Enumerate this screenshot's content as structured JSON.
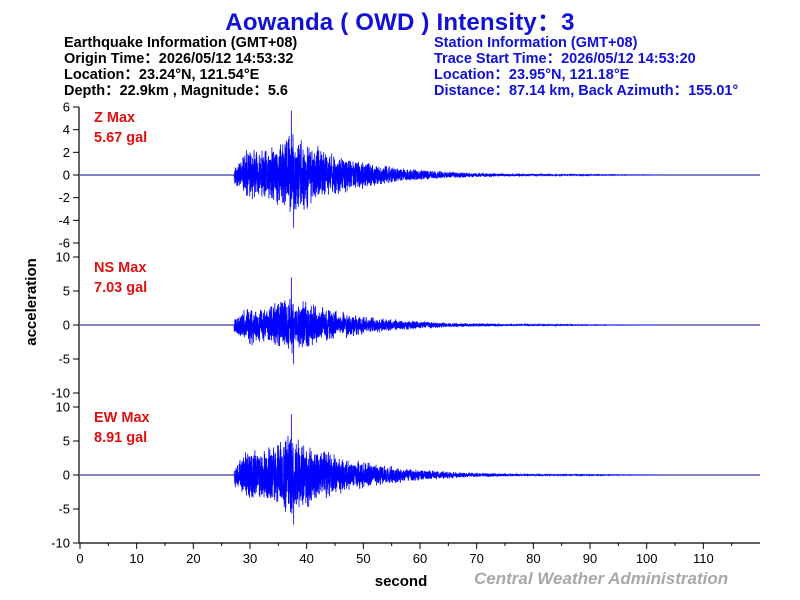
{
  "title": "Aowanda ( OWD ) Intensity：3",
  "earthquake": {
    "heading": "Earthquake Information  (GMT+08)",
    "origin_time": "Origin Time：2026/05/12 14:53:32",
    "location": "Location：23.24°N, 121.54°E",
    "depth_magnitude": "Depth：22.9km , Magnitude：5.6"
  },
  "station": {
    "heading": "Station Information  (GMT+08)",
    "trace_start": "Trace Start Time：2026/05/12 14:53:20",
    "location": "Location：23.95°N, 121.18°E",
    "distance": "Distance：87.14 km, Back Azimuth：155.01°"
  },
  "credit": "Central Weather Administration",
  "colors": {
    "title": "#1010d8",
    "trace": "#0000ff",
    "max_label": "#e01010",
    "credit": "#a8a8a8",
    "baseline": "#00008b"
  },
  "chart_data": {
    "type": "line",
    "xlabel": "second",
    "ylabel": "acceleration",
    "xlim": [
      0,
      120
    ],
    "x_ticks": [
      0,
      10,
      20,
      30,
      40,
      50,
      60,
      70,
      80,
      90,
      100,
      110
    ],
    "onset": 27.2,
    "peak_time": 37.3,
    "series": [
      {
        "name": "Z",
        "max_title": "Z Max",
        "max_value": "5.67 gal",
        "peak": 5.67,
        "amp": 1.55,
        "seed": 11,
        "ylim": [
          -6,
          6
        ],
        "y_ticks": [
          6,
          4,
          2,
          0,
          -2,
          -4,
          -6
        ]
      },
      {
        "name": "NS",
        "max_title": "NS Max",
        "max_value": "7.03 gal",
        "peak": 7.03,
        "amp": 1.5,
        "seed": 23,
        "ylim": [
          -10,
          10
        ],
        "y_ticks": [
          10,
          5,
          0,
          -5,
          -10
        ]
      },
      {
        "name": "EW",
        "max_title": "EW Max",
        "max_value": "8.91 gal",
        "peak": 8.91,
        "amp": 1.7,
        "seed": 37,
        "ylim": [
          -10,
          10
        ],
        "y_ticks": [
          10,
          5,
          0,
          -5,
          -10
        ]
      }
    ]
  }
}
